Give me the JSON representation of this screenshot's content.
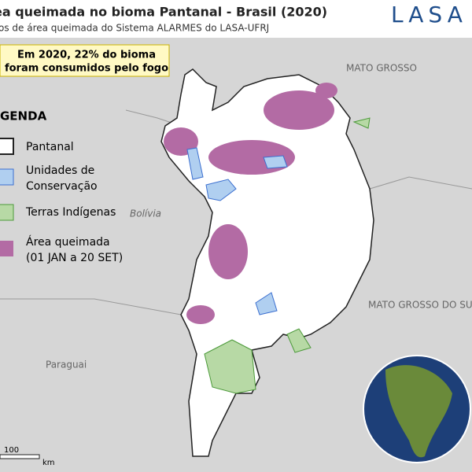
{
  "header": {
    "title": "ea queimada no bioma Pantanal - Brasil (2020)",
    "subtitle": "os de área queimada do Sistema ALARMES do LASA-UFRJ"
  },
  "logo": {
    "text": "LASA"
  },
  "callout": {
    "lines": [
      "Em 2020, 22% do bioma",
      "foram consumidos pelo fogo"
    ]
  },
  "legend": {
    "title": "GENDA",
    "items": [
      {
        "lines": [
          "Pantanal"
        ]
      },
      {
        "lines": [
          "Unidades de",
          "Conservação"
        ]
      },
      {
        "lines": [
          "Terras Indígenas"
        ]
      },
      {
        "lines": [
          "Área queimada",
          "(01 JAN a 20 SET)"
        ]
      }
    ]
  },
  "map_labels": [
    "MATO GROSSO",
    "Bolívia",
    "MATO GROSSO DO SU",
    "Paraguai"
  ],
  "scale": {
    "value": "100",
    "unit": "km"
  }
}
